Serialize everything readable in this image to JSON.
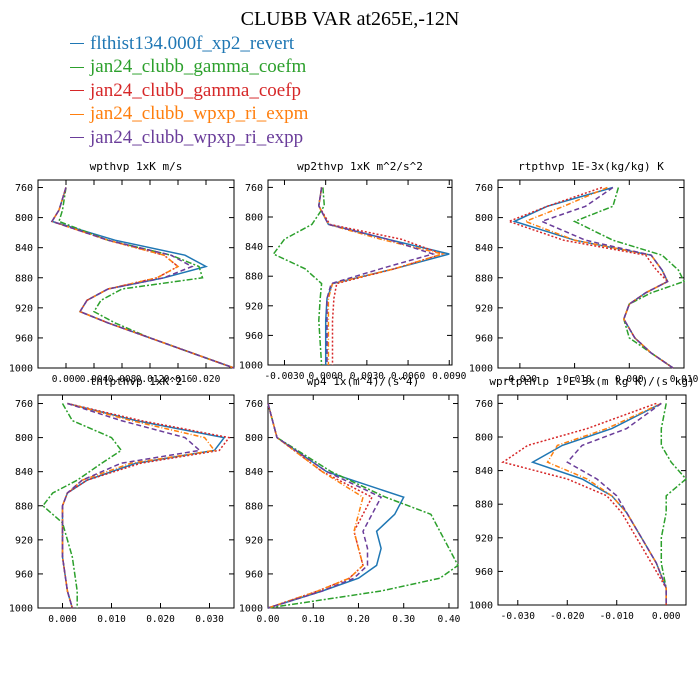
{
  "title": "CLUBB VAR at265E,-12N",
  "legend": [
    {
      "label": "flthist134.000f_xp2_revert",
      "color": "#1f77b4",
      "dash": ""
    },
    {
      "label": "jan24_clubb_gamma_coefm",
      "color": "#2ca02c",
      "dash": "6,2,2,2"
    },
    {
      "label": "jan24_clubb_gamma_coefp",
      "color": "#d62728",
      "dash": "2,2"
    },
    {
      "label": "jan24_clubb_wpxp_ri_expm",
      "color": "#ff7f0e",
      "dash": "5,2,1,2"
    },
    {
      "label": "jan24_clubb_wpxp_ri_expp",
      "color": "#6a3d9a",
      "dash": "5,3"
    }
  ],
  "chart_data": [
    {
      "type": "line",
      "title": "wpthvp  1xK m/s",
      "ylim": [
        1000,
        750
      ],
      "yticks": [
        760,
        800,
        840,
        880,
        920,
        960,
        1000
      ],
      "xlim": [
        -0.004,
        0.024
      ],
      "xticks": [
        0.0,
        0.004,
        0.008,
        0.012,
        0.016,
        0.02
      ],
      "xticklabels": [
        "0.000",
        "0.004",
        "0.008",
        "0.012",
        "0.016",
        "0.020"
      ],
      "levels": [
        760,
        790,
        805,
        830,
        850,
        865,
        880,
        895,
        910,
        925,
        940,
        960,
        980,
        1000
      ],
      "series": [
        {
          "values": [
            0.0,
            -0.001,
            -0.002,
            0.007,
            0.017,
            0.02,
            0.014,
            0.006,
            0.003,
            0.002,
            0.006,
            0.012,
            0.018,
            0.024
          ]
        },
        {
          "values": [
            0.0,
            -0.0005,
            -0.001,
            0.006,
            0.015,
            0.019,
            0.0195,
            0.008,
            0.005,
            0.004,
            0.007,
            0.012,
            0.018,
            0.024
          ]
        },
        {
          "values": [
            0.0,
            -0.001,
            -0.002,
            0.006,
            0.014,
            0.016,
            0.013,
            0.006,
            0.003,
            0.002,
            0.006,
            0.012,
            0.018,
            0.024
          ]
        },
        {
          "values": [
            0.0,
            -0.001,
            -0.002,
            0.006,
            0.014,
            0.016,
            0.013,
            0.006,
            0.003,
            0.002,
            0.006,
            0.012,
            0.018,
            0.024
          ]
        },
        {
          "values": [
            0.0,
            -0.001,
            -0.002,
            0.006,
            0.015,
            0.018,
            0.014,
            0.006,
            0.003,
            0.002,
            0.006,
            0.012,
            0.018,
            0.024
          ]
        }
      ]
    },
    {
      "type": "line",
      "title": "wp2thvp  1xK m^2/s^2",
      "ylim": [
        1000,
        750
      ],
      "yticks": [
        760,
        800,
        840,
        880,
        920,
        960,
        1000
      ],
      "xlim": [
        -0.0042,
        0.0092
      ],
      "xticks": [
        -0.003,
        0.0,
        0.003,
        0.006,
        0.009
      ],
      "xticklabels": [
        "-0.0030",
        "0.0000",
        "0.0030",
        "0.0060",
        "0.0090"
      ],
      "levels": [
        760,
        785,
        810,
        830,
        850,
        870,
        890,
        910,
        940,
        970,
        1000
      ],
      "series": [
        {
          "values": [
            -0.0003,
            -0.0005,
            0.0002,
            0.0045,
            0.009,
            0.005,
            0.0005,
            0.0001,
            0.0,
            0.0,
            0.0
          ]
        },
        {
          "values": [
            -0.0002,
            -0.0001,
            -0.001,
            -0.003,
            -0.0038,
            -0.0015,
            -0.0003,
            -0.0004,
            -0.0005,
            -0.0004,
            -0.0003
          ]
        },
        {
          "values": [
            -0.0003,
            -0.0005,
            0.0003,
            0.0055,
            0.0085,
            0.005,
            0.0008,
            0.0006,
            0.0005,
            0.0005,
            0.0005
          ]
        },
        {
          "values": [
            -0.0003,
            -0.0005,
            0.0002,
            0.004,
            0.0085,
            0.005,
            0.0005,
            0.0002,
            0.0002,
            0.0002,
            0.0002
          ]
        },
        {
          "values": [
            -0.0003,
            -0.0005,
            0.0002,
            0.0045,
            0.0078,
            0.004,
            0.0004,
            0.0001,
            0.0001,
            0.0001,
            0.0001
          ]
        }
      ]
    },
    {
      "type": "line",
      "title": "rtpthvp  1E-3x(kg/kg) K",
      "ylim": [
        1000,
        750
      ],
      "yticks": [
        760,
        800,
        840,
        880,
        920,
        960,
        1000
      ],
      "xlim": [
        -0.024,
        0.01
      ],
      "xticks": [
        -0.02,
        -0.01,
        0.0,
        0.01
      ],
      "xticklabels": [
        "-0.020",
        "-0.010",
        "0.000",
        "0.010"
      ],
      "levels": [
        760,
        785,
        805,
        830,
        850,
        870,
        885,
        900,
        915,
        935,
        960,
        980,
        1000
      ],
      "series": [
        {
          "values": [
            -0.003,
            -0.015,
            -0.021,
            -0.01,
            0.004,
            0.006,
            0.007,
            0.003,
            0.0,
            -0.001,
            0.001,
            0.004,
            0.008
          ]
        },
        {
          "values": [
            -0.002,
            -0.003,
            -0.01,
            -0.003,
            0.006,
            0.009,
            0.01,
            0.004,
            0.0,
            -0.001,
            0.0,
            0.004,
            0.008
          ]
        },
        {
          "values": [
            -0.005,
            -0.015,
            -0.022,
            -0.012,
            0.003,
            0.005,
            0.007,
            0.003,
            0.0,
            -0.001,
            0.001,
            0.004,
            0.008
          ]
        },
        {
          "values": [
            -0.004,
            -0.012,
            -0.019,
            -0.01,
            0.004,
            0.006,
            0.007,
            0.003,
            0.0,
            -0.001,
            0.001,
            0.004,
            0.008
          ]
        },
        {
          "values": [
            -0.003,
            -0.008,
            -0.016,
            -0.008,
            0.004,
            0.006,
            0.007,
            0.003,
            0.0,
            -0.001,
            0.001,
            0.004,
            0.008
          ]
        }
      ]
    },
    {
      "type": "line",
      "title": "thlpthvp  1xK^2",
      "ylim": [
        1000,
        750
      ],
      "yticks": [
        760,
        800,
        840,
        880,
        920,
        960,
        1000
      ],
      "xlim": [
        -0.005,
        0.035
      ],
      "xticks": [
        0.0,
        0.01,
        0.02,
        0.03
      ],
      "xticklabels": [
        "0.000",
        "0.010",
        "0.020",
        "0.030"
      ],
      "levels": [
        760,
        780,
        800,
        815,
        830,
        850,
        865,
        880,
        900,
        940,
        980,
        1000
      ],
      "series": [
        {
          "values": [
            0.001,
            0.015,
            0.033,
            0.031,
            0.015,
            0.005,
            0.001,
            0.0,
            0.0,
            0.0,
            0.001,
            0.002
          ]
        },
        {
          "values": [
            0.0,
            0.002,
            0.01,
            0.012,
            0.008,
            0.003,
            -0.002,
            -0.004,
            0.0,
            0.002,
            0.003,
            0.003
          ]
        },
        {
          "values": [
            0.001,
            0.016,
            0.034,
            0.032,
            0.016,
            0.005,
            0.001,
            0.0,
            0.0,
            0.0,
            0.001,
            0.002
          ]
        },
        {
          "values": [
            0.001,
            0.014,
            0.029,
            0.031,
            0.014,
            0.004,
            0.001,
            0.0,
            0.0,
            0.0,
            0.001,
            0.002
          ]
        },
        {
          "values": [
            0.001,
            0.012,
            0.025,
            0.028,
            0.012,
            0.004,
            0.001,
            0.0,
            0.0,
            0.0,
            0.001,
            0.002
          ]
        }
      ]
    },
    {
      "type": "line",
      "title": "wp4  1x(m^4)/(s^4)",
      "ylim": [
        1000,
        750
      ],
      "yticks": [
        760,
        800,
        840,
        880,
        920,
        960,
        1000
      ],
      "xlim": [
        0.0,
        0.42
      ],
      "xticks": [
        0.0,
        0.1,
        0.2,
        0.3,
        0.4
      ],
      "xticklabels": [
        "0.00",
        "0.10",
        "0.20",
        "0.30",
        "0.40"
      ],
      "levels": [
        760,
        800,
        840,
        870,
        890,
        910,
        930,
        950,
        965,
        980,
        1000
      ],
      "series": [
        {
          "values": [
            0.0,
            0.02,
            0.13,
            0.3,
            0.28,
            0.24,
            0.25,
            0.24,
            0.2,
            0.12,
            0.0
          ]
        },
        {
          "values": [
            0.0,
            0.02,
            0.14,
            0.26,
            0.36,
            0.38,
            0.4,
            0.42,
            0.38,
            0.25,
            0.0
          ]
        },
        {
          "values": [
            0.0,
            0.02,
            0.12,
            0.23,
            0.21,
            0.19,
            0.2,
            0.21,
            0.18,
            0.11,
            0.0
          ]
        },
        {
          "values": [
            0.0,
            0.02,
            0.12,
            0.21,
            0.2,
            0.19,
            0.2,
            0.21,
            0.18,
            0.11,
            0.0
          ]
        },
        {
          "values": [
            0.0,
            0.02,
            0.13,
            0.25,
            0.23,
            0.21,
            0.22,
            0.22,
            0.19,
            0.12,
            0.0
          ]
        }
      ]
    },
    {
      "type": "line",
      "title": "wprtpthlp  1-E-3x(m kg K)/(s kg)",
      "ylim": [
        1000,
        750
      ],
      "yticks": [
        760,
        800,
        840,
        880,
        920,
        960,
        1000
      ],
      "xlim": [
        -0.034,
        0.004
      ],
      "xticks": [
        -0.03,
        -0.02,
        -0.01,
        0.0
      ],
      "xticklabels": [
        "-0.030",
        "-0.020",
        "-0.010",
        "0.000"
      ],
      "levels": [
        760,
        790,
        810,
        830,
        850,
        870,
        890,
        920,
        950,
        980,
        1000
      ],
      "series": [
        {
          "values": [
            -0.001,
            -0.011,
            -0.021,
            -0.027,
            -0.017,
            -0.011,
            -0.008,
            -0.005,
            -0.002,
            0.0,
            0.0
          ]
        },
        {
          "values": [
            0.0,
            -0.001,
            -0.001,
            0.001,
            0.004,
            0.0,
            0.0,
            -0.001,
            -0.001,
            0.0,
            0.0
          ]
        },
        {
          "values": [
            -0.002,
            -0.016,
            -0.028,
            -0.033,
            -0.02,
            -0.012,
            -0.009,
            -0.006,
            -0.003,
            0.0,
            0.0
          ]
        },
        {
          "values": [
            -0.001,
            -0.012,
            -0.022,
            -0.024,
            -0.016,
            -0.011,
            -0.008,
            -0.005,
            -0.002,
            0.0,
            0.0
          ]
        },
        {
          "values": [
            -0.001,
            -0.008,
            -0.017,
            -0.02,
            -0.014,
            -0.01,
            -0.008,
            -0.005,
            -0.002,
            0.0,
            0.0
          ]
        }
      ]
    }
  ]
}
